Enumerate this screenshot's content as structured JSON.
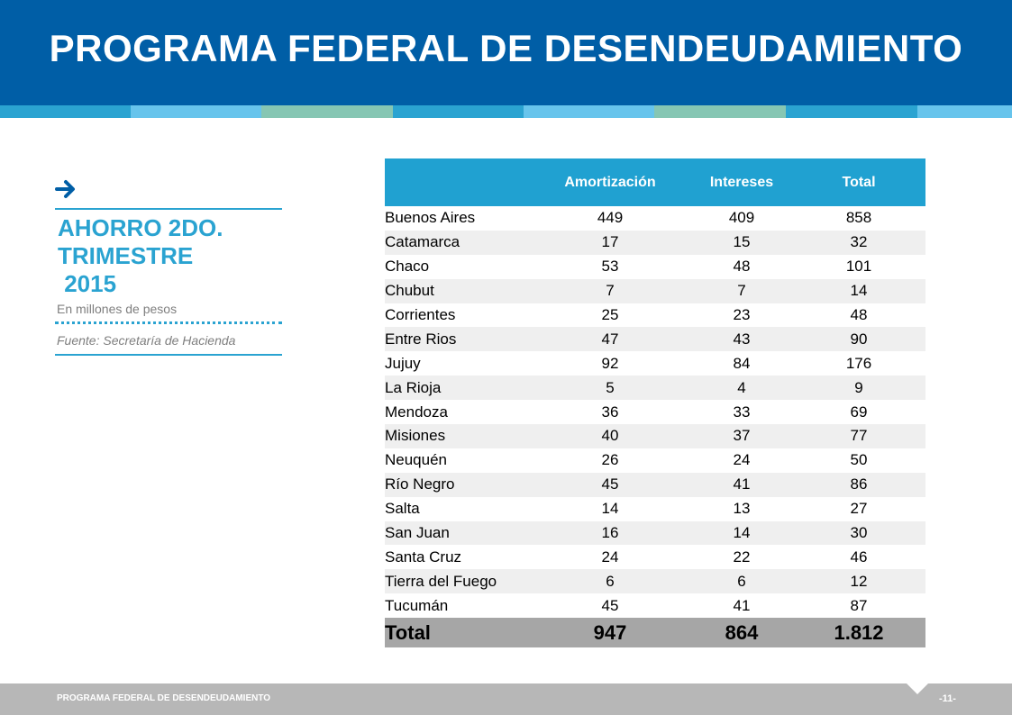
{
  "header": {
    "title": "PROGRAMA FEDERAL DE DESENDEUDAMIENTO"
  },
  "sidebar": {
    "arrow_icon": "arrow-right-icon",
    "title_lines": [
      "AHORRO 2DO.",
      "TRIMESTRE",
      " 2015"
    ],
    "units": "En millones de pesos",
    "source": "Fuente: Secretaría de Hacienda"
  },
  "table": {
    "headers": [
      "",
      "Amortización",
      "Intereses",
      "Total"
    ],
    "rows": [
      [
        "Buenos Aires",
        "449",
        "409",
        "858"
      ],
      [
        "Catamarca",
        "17",
        "15",
        "32"
      ],
      [
        "Chaco",
        "53",
        "48",
        "101"
      ],
      [
        "Chubut",
        "7",
        "7",
        "14"
      ],
      [
        "Corrientes",
        "25",
        "23",
        "48"
      ],
      [
        "Entre Rios",
        "47",
        "43",
        "90"
      ],
      [
        "Jujuy",
        "92",
        "84",
        "176"
      ],
      [
        "La Rioja",
        "5",
        "4",
        "9"
      ],
      [
        "Mendoza",
        "36",
        "33",
        "69"
      ],
      [
        "Misiones",
        "40",
        "37",
        "77"
      ],
      [
        "Neuquén",
        "26",
        "24",
        "50"
      ],
      [
        "Río Negro",
        "45",
        "41",
        "86"
      ],
      [
        "Salta",
        "14",
        "13",
        "27"
      ],
      [
        "San Juan",
        "16",
        "14",
        "30"
      ],
      [
        "Santa Cruz",
        "24",
        "22",
        "46"
      ],
      [
        "Tierra del Fuego",
        "6",
        "6",
        "12"
      ],
      [
        "Tucumán",
        "45",
        "41",
        "87"
      ]
    ],
    "total": [
      "Total",
      "947",
      "864",
      "1.812"
    ]
  },
  "footer": {
    "left": "PROGRAMA FEDERAL DE DESENDEUDAMIENTO",
    "page": "-11-"
  },
  "colors": {
    "header_bg": "#005ea6",
    "accent": "#2aa3d1",
    "table_header": "#20a1d1",
    "total_row": "#a6a6a6",
    "footer_bg": "#b7b7b7"
  }
}
